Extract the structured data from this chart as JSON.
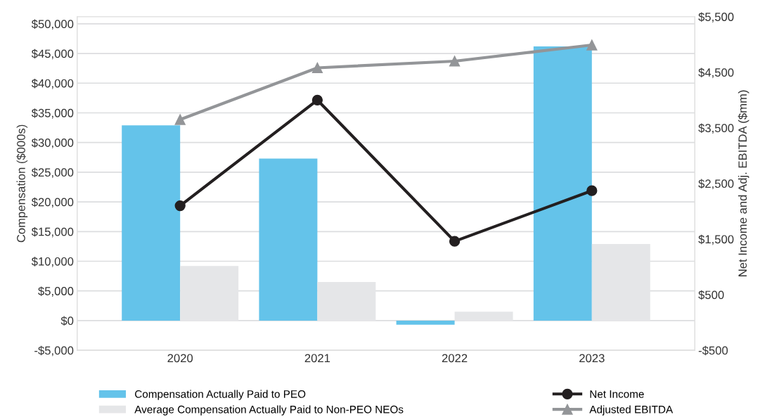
{
  "chart_data": {
    "type": "bar",
    "categories": [
      "2020",
      "2021",
      "2022",
      "2023"
    ],
    "ylabel": "Compensation ($000s)",
    "y2label": "Net Income and Adj. EBITDA ($mm)",
    "ylim": [
      -5000,
      51200
    ],
    "yticks": [
      {
        "value": -5000,
        "label": "-$5,000"
      },
      {
        "value": 0,
        "label": "$0"
      },
      {
        "value": 5000,
        "label": "$5,000"
      },
      {
        "value": 10000,
        "label": "$10,000"
      },
      {
        "value": 15000,
        "label": "$15,000"
      },
      {
        "value": 20000,
        "label": "$20,000"
      },
      {
        "value": 25000,
        "label": "$25,000"
      },
      {
        "value": 30000,
        "label": "$30,000"
      },
      {
        "value": 35000,
        "label": "$35,000"
      },
      {
        "value": 40000,
        "label": "$40,000"
      },
      {
        "value": 45000,
        "label": "$45,000"
      },
      {
        "value": 50000,
        "label": "$50,000"
      }
    ],
    "y2lim": [
      -500,
      5500
    ],
    "y2ticks": [
      {
        "value": -500,
        "label": "-$500"
      },
      {
        "value": 500,
        "label": "$500"
      },
      {
        "value": 1500,
        "label": "$1,500"
      },
      {
        "value": 2500,
        "label": "$2,500"
      },
      {
        "value": 3500,
        "label": "$3,500"
      },
      {
        "value": 4500,
        "label": "$4,500"
      },
      {
        "value": 5500,
        "label": "$5,500"
      }
    ],
    "grid": "y",
    "legend": "bottom",
    "series": [
      {
        "name": "Compensation Actually Paid to PEO",
        "color": "#64c3ea",
        "values": [
          32900,
          27300,
          -700,
          46200
        ]
      },
      {
        "name": "Average Compensation Actually Paid to Non-PEO NEOs",
        "color": "#e5e6e8",
        "values": [
          9200,
          6500,
          1500,
          12900
        ]
      },
      {
        "name": "Net Income",
        "type": "line",
        "axis": "y2",
        "marker": "circle",
        "color": "#231f20",
        "values": [
          2100,
          4000,
          1460,
          2370
        ]
      },
      {
        "name": "Adjusted EBITDA",
        "type": "line",
        "axis": "y2",
        "marker": "triangle",
        "color": "#939598",
        "values": [
          3650,
          4580,
          4700,
          4990
        ]
      }
    ]
  }
}
